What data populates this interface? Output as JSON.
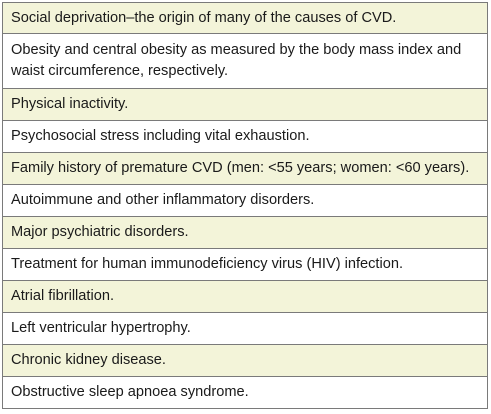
{
  "rows": [
    {
      "text": "Social deprivation–the origin of many of the causes of CVD.",
      "shaded": true
    },
    {
      "text": "Obesity and central obesity as measured by the body mass index and waist circumference, respectively.",
      "shaded": false
    },
    {
      "text": "Physical inactivity.",
      "shaded": true
    },
    {
      "text": "Psychosocial stress including vital exhaustion.",
      "shaded": false
    },
    {
      "text": "Family history of premature CVD (men: <55 years; women: <60 years).",
      "shaded": true
    },
    {
      "text": "Autoimmune and other inflammatory disorders.",
      "shaded": false
    },
    {
      "text": "Major psychiatric disorders.",
      "shaded": true
    },
    {
      "text": "Treatment for human immunodeficiency virus (HIV) infection.",
      "shaded": false
    },
    {
      "text": "Atrial fibrillation.",
      "shaded": true
    },
    {
      "text": "Left ventricular hypertrophy.",
      "shaded": false
    },
    {
      "text": "Chronic kidney disease.",
      "shaded": true
    },
    {
      "text": "Obstructive sleep apnoea syndrome.",
      "shaded": false
    }
  ],
  "colors": {
    "shaded_row": "#f3f4d9",
    "plain_row": "#ffffff",
    "border": "#7a7a7a",
    "text": "#1a1a1a"
  }
}
